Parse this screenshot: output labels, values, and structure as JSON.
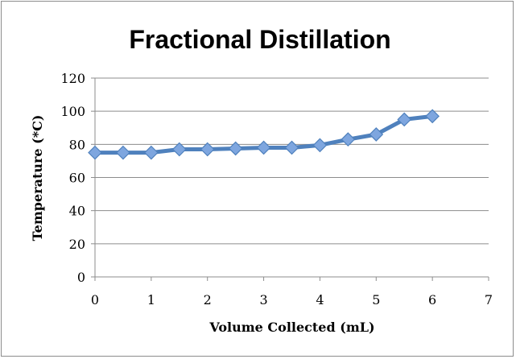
{
  "chart_data": {
    "type": "line",
    "title": "Fractional Distillation",
    "xlabel": "Volume Collected (mL)",
    "ylabel": "Temperature (*C)",
    "xlim": [
      0,
      7
    ],
    "ylim": [
      0,
      120
    ],
    "xticks": [
      0,
      1,
      2,
      3,
      4,
      5,
      6,
      7
    ],
    "yticks": [
      0,
      20,
      40,
      60,
      80,
      100,
      120
    ],
    "grid": "horizontal",
    "legend": "none",
    "series": [
      {
        "color": "#4f81bd",
        "marker": "diamond",
        "marker_color": "#7ea6df",
        "points": [
          {
            "x": 0,
            "y": 75
          },
          {
            "x": 0.5,
            "y": 75
          },
          {
            "x": 1,
            "y": 75
          },
          {
            "x": 1.5,
            "y": 77
          },
          {
            "x": 2,
            "y": 77
          },
          {
            "x": 2.5,
            "y": 77.5
          },
          {
            "x": 3,
            "y": 78
          },
          {
            "x": 3.5,
            "y": 78
          },
          {
            "x": 4,
            "y": 79.5
          },
          {
            "x": 4.5,
            "y": 83
          },
          {
            "x": 5,
            "y": 86
          },
          {
            "x": 5.5,
            "y": 95
          },
          {
            "x": 6,
            "y": 97
          }
        ]
      }
    ]
  }
}
